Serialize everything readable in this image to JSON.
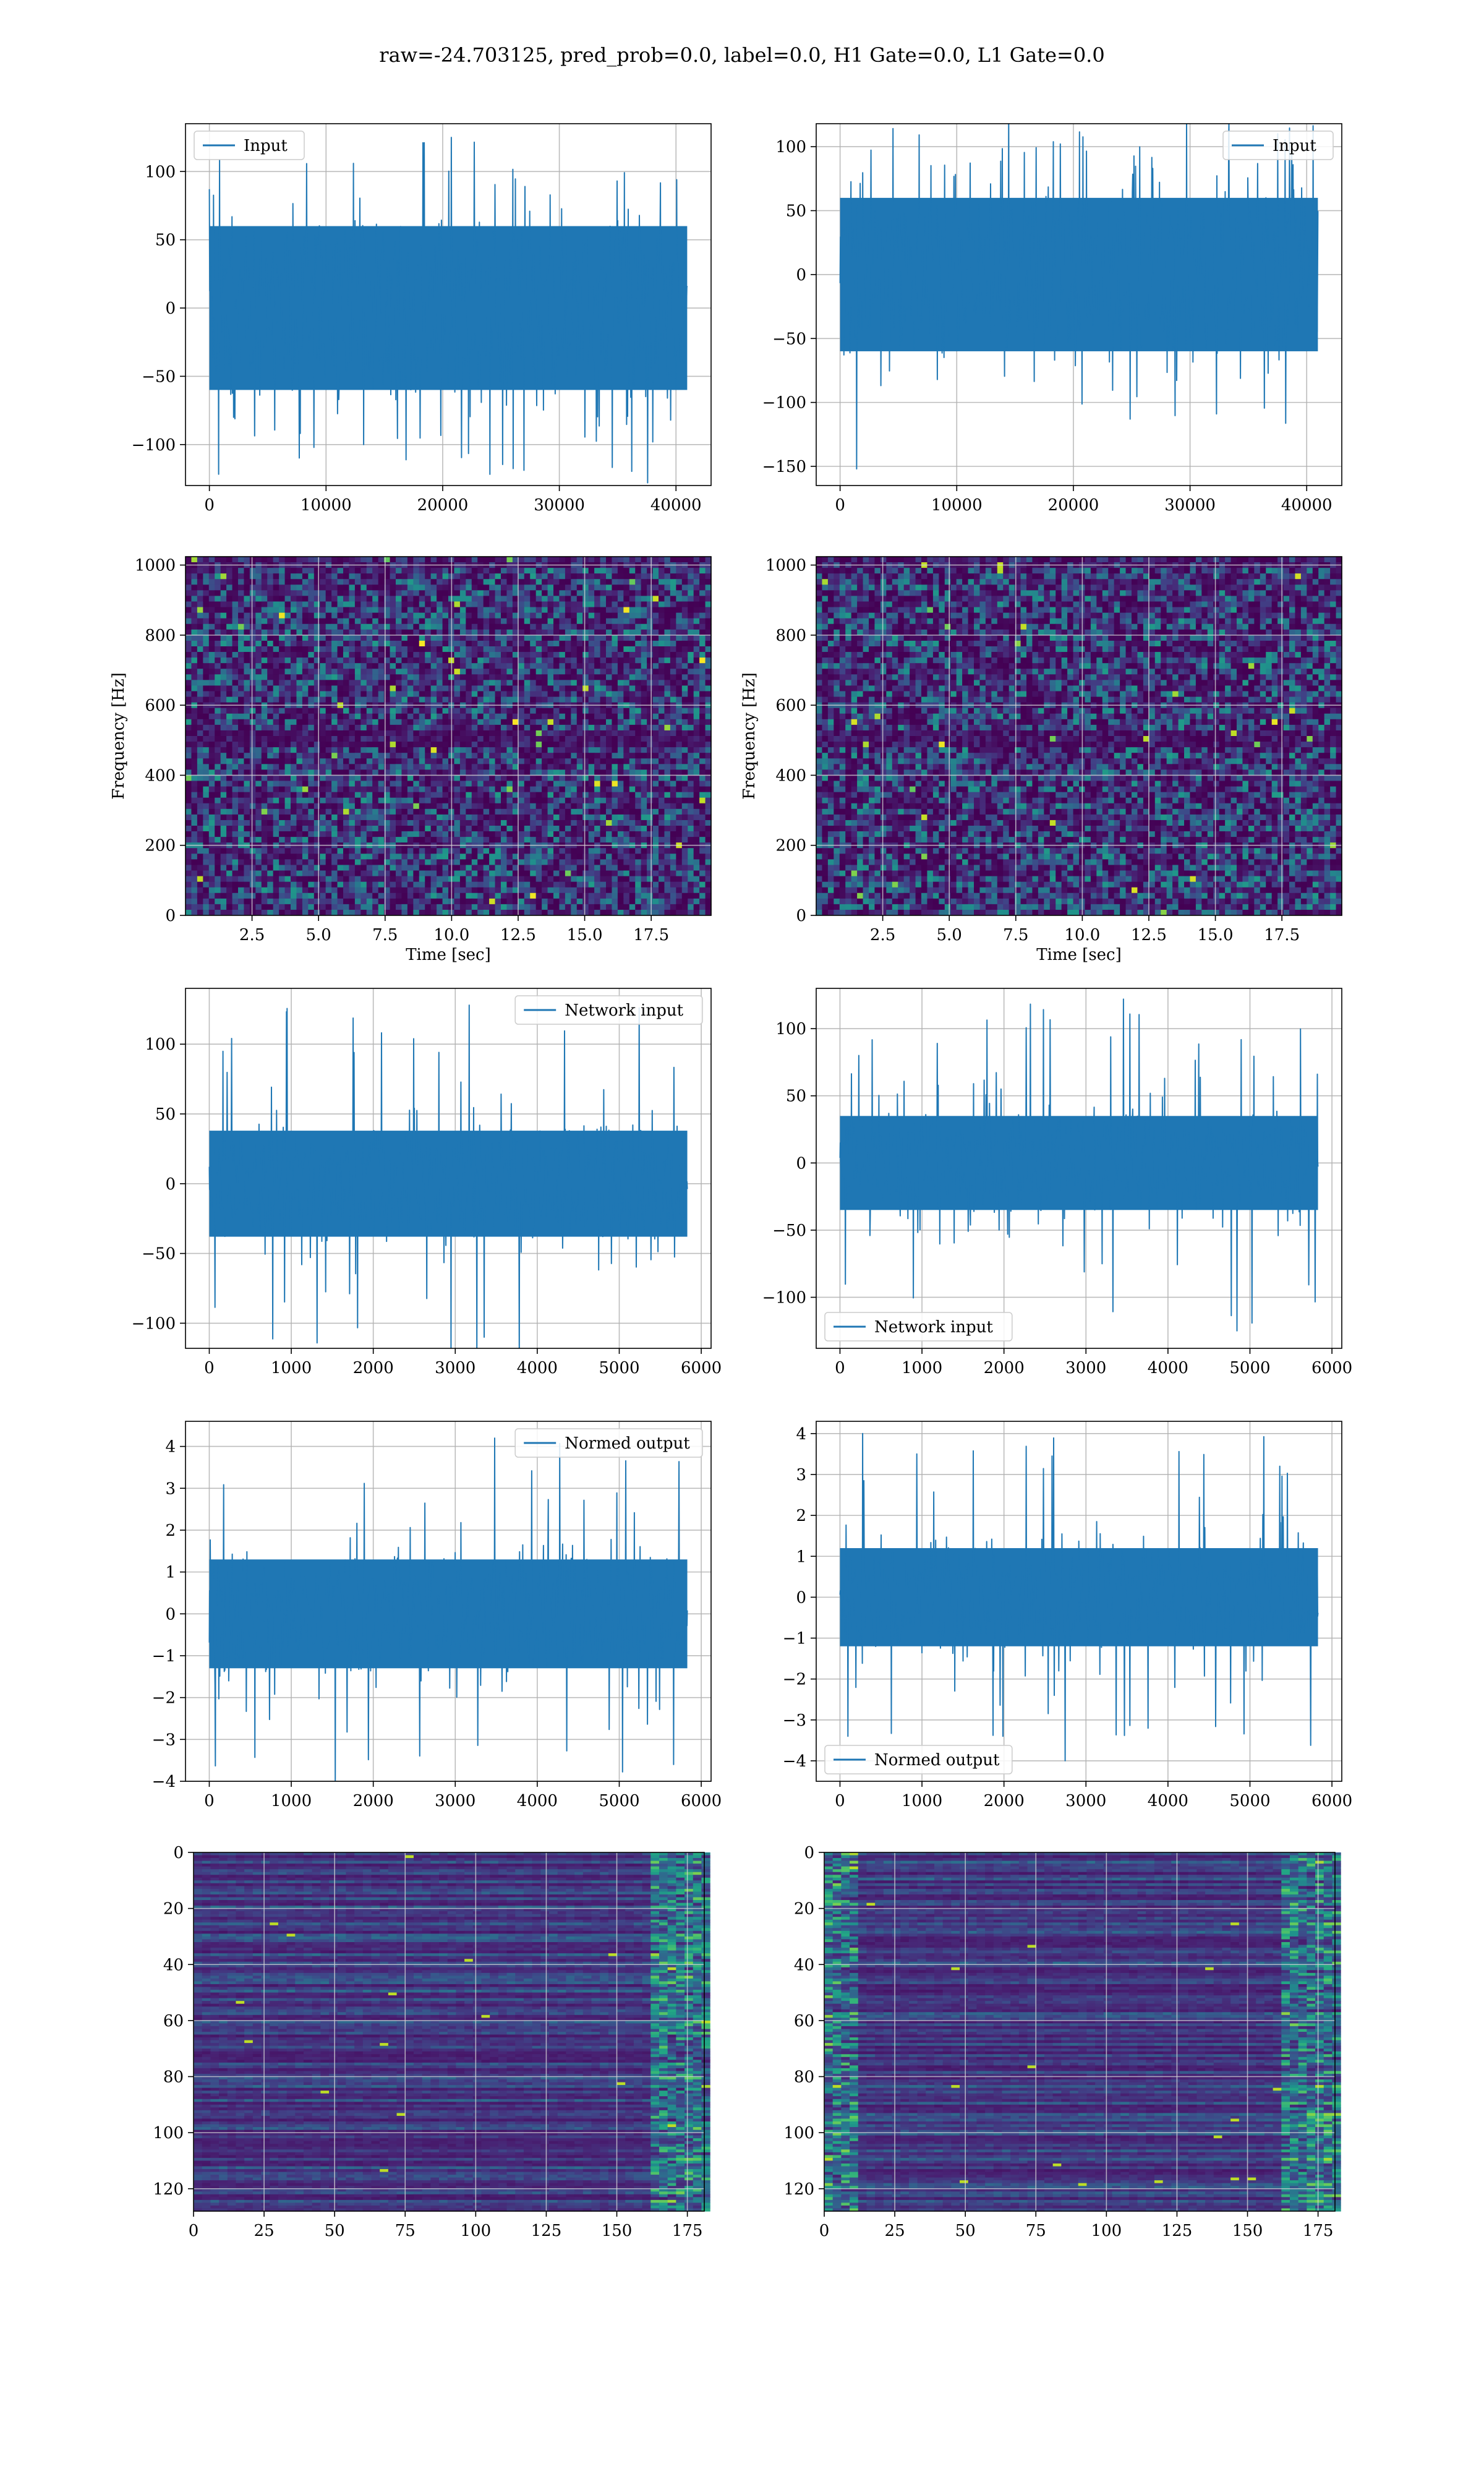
{
  "figure": {
    "suptitle": "raw=-24.703125, pred_prob=0.0, label=0.0, H1 Gate=0.0, L1 Gate=0.0"
  },
  "colors": {
    "line": "#1f77b4",
    "grid": "#b0b0b0",
    "viridis_dark": "#440154",
    "viridis_mid": "#21918c",
    "viridis_bright": "#fde725"
  },
  "chart_data": [
    {
      "id": "input-left",
      "type": "line",
      "legend": "Input",
      "legend_loc": "upper left",
      "x_range": [
        0,
        40960
      ],
      "xlim": [
        -2048,
        43008
      ],
      "ylim": [
        -130,
        135
      ],
      "xticks": [
        0,
        10000,
        20000,
        30000,
        40000
      ],
      "xtick_labels": [
        "0",
        "10000",
        "20000",
        "30000",
        "40000"
      ],
      "yticks": [
        -100,
        -50,
        0,
        50,
        100
      ],
      "ytick_labels": [
        "−100",
        "−50",
        "0",
        "50",
        "100"
      ],
      "envelope": {
        "core": 60,
        "peak_max": 125,
        "peak_min": -128
      }
    },
    {
      "id": "input-right",
      "type": "line",
      "legend": "Input",
      "legend_loc": "upper right",
      "x_range": [
        0,
        40960
      ],
      "xlim": [
        -2048,
        43008
      ],
      "ylim": [
        -165,
        118
      ],
      "xticks": [
        0,
        10000,
        20000,
        30000,
        40000
      ],
      "xtick_labels": [
        "0",
        "10000",
        "20000",
        "30000",
        "40000"
      ],
      "yticks": [
        -150,
        -100,
        -50,
        0,
        50,
        100
      ],
      "ytick_labels": [
        "−150",
        "−100",
        "−50",
        "0",
        "50",
        "100"
      ],
      "envelope": {
        "core": 60,
        "peak_max": 120,
        "peak_min": -152
      }
    },
    {
      "id": "spectrogram-left",
      "type": "heatmap",
      "xlim": [
        0,
        19.75
      ],
      "ylim": [
        0,
        1024
      ],
      "xticks": [
        2.5,
        5.0,
        7.5,
        10.0,
        12.5,
        15.0,
        17.5
      ],
      "xtick_labels": [
        "2.5",
        "5.0",
        "7.5",
        "10.0",
        "12.5",
        "15.0",
        "17.5"
      ],
      "yticks": [
        0,
        200,
        400,
        600,
        800,
        1000
      ],
      "ytick_labels": [
        "0",
        "200",
        "400",
        "600",
        "800",
        "1000"
      ],
      "xlabel": "Time [sec]",
      "ylabel": "Frequency [Hz]"
    },
    {
      "id": "spectrogram-right",
      "type": "heatmap",
      "xlim": [
        0,
        19.75
      ],
      "ylim": [
        0,
        1024
      ],
      "xticks": [
        2.5,
        5.0,
        7.5,
        10.0,
        12.5,
        15.0,
        17.5
      ],
      "xtick_labels": [
        "2.5",
        "5.0",
        "7.5",
        "10.0",
        "12.5",
        "15.0",
        "17.5"
      ],
      "yticks": [
        0,
        200,
        400,
        600,
        800,
        1000
      ],
      "ytick_labels": [
        "0",
        "200",
        "400",
        "600",
        "800",
        "1000"
      ],
      "xlabel": "Time [sec]",
      "ylabel": "Frequency [Hz]"
    },
    {
      "id": "network-input-left",
      "type": "line",
      "legend": "Network input",
      "legend_loc": "upper right",
      "x_range": [
        0,
        5830
      ],
      "xlim": [
        -290,
        6120
      ],
      "ylim": [
        -118,
        140
      ],
      "xticks": [
        0,
        1000,
        2000,
        3000,
        4000,
        5000,
        6000
      ],
      "xtick_labels": [
        "0",
        "1000",
        "2000",
        "3000",
        "4000",
        "5000",
        "6000"
      ],
      "yticks": [
        -100,
        -50,
        0,
        50,
        100
      ],
      "ytick_labels": [
        "−100",
        "−50",
        "0",
        "50",
        "100"
      ],
      "envelope": {
        "core": 38,
        "peak_max": 128,
        "peak_min": -110
      }
    },
    {
      "id": "network-input-right",
      "type": "line",
      "legend": "Network input",
      "legend_loc": "lower left",
      "x_range": [
        0,
        5830
      ],
      "xlim": [
        -290,
        6120
      ],
      "ylim": [
        -138,
        130
      ],
      "xticks": [
        0,
        1000,
        2000,
        3000,
        4000,
        5000,
        6000
      ],
      "xtick_labels": [
        "0",
        "1000",
        "2000",
        "3000",
        "4000",
        "5000",
        "6000"
      ],
      "yticks": [
        -100,
        -50,
        0,
        50,
        100
      ],
      "ytick_labels": [
        "−100",
        "−50",
        "0",
        "50",
        "100"
      ],
      "envelope": {
        "core": 35,
        "peak_max": 122,
        "peak_min": -125
      }
    },
    {
      "id": "normed-output-left",
      "type": "line",
      "legend": "Normed output",
      "legend_loc": "upper right",
      "x_range": [
        0,
        5830
      ],
      "xlim": [
        -290,
        6120
      ],
      "ylim": [
        -4.0,
        4.6
      ],
      "xticks": [
        0,
        1000,
        2000,
        3000,
        4000,
        5000,
        6000
      ],
      "xtick_labels": [
        "0",
        "1000",
        "2000",
        "3000",
        "4000",
        "5000",
        "6000"
      ],
      "yticks": [
        -4,
        -3,
        -2,
        -1,
        0,
        1,
        2,
        3,
        4
      ],
      "ytick_labels": [
        "−4",
        "−3",
        "−2",
        "−1",
        "0",
        "1",
        "2",
        "3",
        "4"
      ],
      "envelope": {
        "core": 1.3,
        "peak_max": 4.2,
        "peak_min": -3.6
      }
    },
    {
      "id": "normed-output-right",
      "type": "line",
      "legend": "Normed output",
      "legend_loc": "lower left",
      "x_range": [
        0,
        5830
      ],
      "xlim": [
        -290,
        6120
      ],
      "ylim": [
        -4.5,
        4.3
      ],
      "xticks": [
        0,
        1000,
        2000,
        3000,
        4000,
        5000,
        6000
      ],
      "xtick_labels": [
        "0",
        "1000",
        "2000",
        "3000",
        "4000",
        "5000",
        "6000"
      ],
      "yticks": [
        -4,
        -3,
        -2,
        -1,
        0,
        1,
        2,
        3,
        4
      ],
      "ytick_labels": [
        "−4",
        "−3",
        "−2",
        "−1",
        "0",
        "1",
        "2",
        "3",
        "4"
      ],
      "envelope": {
        "core": 1.2,
        "peak_max": 4.0,
        "peak_min": -4.0
      }
    },
    {
      "id": "feature-map-left",
      "type": "heatmap",
      "xlim": [
        0,
        181
      ],
      "ylim": [
        128,
        0
      ],
      "xticks": [
        0,
        25,
        50,
        75,
        100,
        125,
        150,
        175
      ],
      "xtick_labels": [
        "0",
        "25",
        "50",
        "75",
        "100",
        "125",
        "150",
        "175"
      ],
      "yticks": [
        0,
        20,
        40,
        60,
        80,
        100,
        120
      ],
      "ytick_labels": [
        "0",
        "20",
        "40",
        "60",
        "80",
        "100",
        "120"
      ],
      "hot_columns": "right"
    },
    {
      "id": "feature-map-right",
      "type": "heatmap",
      "xlim": [
        0,
        181
      ],
      "ylim": [
        128,
        0
      ],
      "xticks": [
        0,
        25,
        50,
        75,
        100,
        125,
        150,
        175
      ],
      "xtick_labels": [
        "0",
        "25",
        "50",
        "75",
        "100",
        "125",
        "150",
        "175"
      ],
      "yticks": [
        0,
        20,
        40,
        60,
        80,
        100,
        120
      ],
      "ytick_labels": [
        "0",
        "20",
        "40",
        "60",
        "80",
        "100",
        "120"
      ],
      "hot_columns": "both"
    }
  ]
}
